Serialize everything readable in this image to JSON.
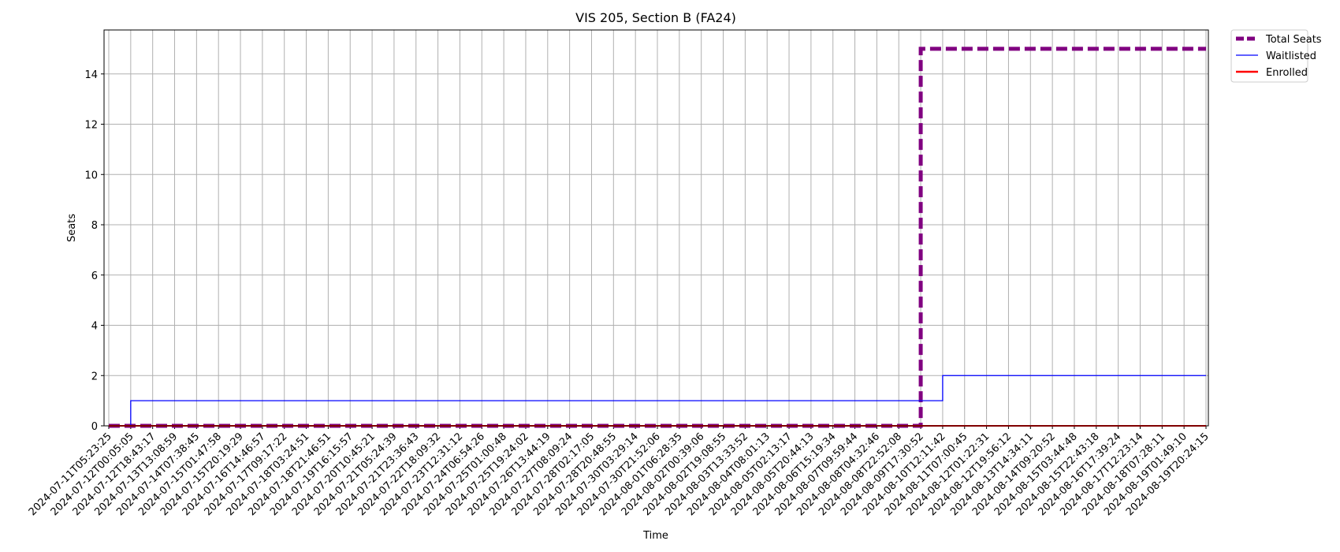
{
  "chart_data": {
    "type": "line",
    "title": "VIS 205, Section B (FA24)",
    "xlabel": "Time",
    "ylabel": "Seats",
    "ylim": [
      0,
      15.75
    ],
    "yticks": [
      0,
      2,
      4,
      6,
      8,
      10,
      12,
      14
    ],
    "grid": true,
    "legend_position": "outside-top-right",
    "x": [
      "2024-07-11T05:23:25",
      "2024-07-12T00:05:05",
      "2024-07-12T18:43:17",
      "2024-07-13T13:08:59",
      "2024-07-14T07:38:45",
      "2024-07-15T01:47:58",
      "2024-07-15T20:19:29",
      "2024-07-16T14:46:57",
      "2024-07-17T09:17:22",
      "2024-07-18T03:24:51",
      "2024-07-18T21:46:51",
      "2024-07-19T16:15:57",
      "2024-07-20T10:45:21",
      "2024-07-21T05:24:39",
      "2024-07-21T23:36:43",
      "2024-07-22T18:09:32",
      "2024-07-23T12:31:12",
      "2024-07-24T06:54:26",
      "2024-07-25T01:00:48",
      "2024-07-25T19:24:02",
      "2024-07-26T13:44:19",
      "2024-07-27T08:09:24",
      "2024-07-28T02:17:05",
      "2024-07-28T20:48:55",
      "2024-07-30T03:29:14",
      "2024-07-30T21:52:06",
      "2024-08-01T06:28:35",
      "2024-08-02T00:39:06",
      "2024-08-02T19:08:55",
      "2024-08-03T13:33:52",
      "2024-08-04T08:01:13",
      "2024-08-05T02:13:17",
      "2024-08-05T20:44:13",
      "2024-08-06T15:19:34",
      "2024-08-07T09:59:44",
      "2024-08-08T04:32:46",
      "2024-08-08T22:52:08",
      "2024-08-09T17:30:52",
      "2024-08-10T12:11:42",
      "2024-08-11T07:00:45",
      "2024-08-12T01:22:31",
      "2024-08-12T19:56:12",
      "2024-08-13T14:34:11",
      "2024-08-14T09:20:52",
      "2024-08-15T03:44:48",
      "2024-08-15T22:43:18",
      "2024-08-16T17:39:24",
      "2024-08-17T12:23:14",
      "2024-08-18T07:28:11",
      "2024-08-19T01:49:10",
      "2024-08-19T20:24:15"
    ],
    "series": [
      {
        "name": "Total Seats",
        "color": "#800080",
        "style": "dashed",
        "values": [
          0,
          0,
          0,
          0,
          0,
          0,
          0,
          0,
          0,
          0,
          0,
          0,
          0,
          0,
          0,
          0,
          0,
          0,
          0,
          0,
          0,
          0,
          0,
          0,
          0,
          0,
          0,
          0,
          0,
          0,
          0,
          0,
          0,
          0,
          0,
          0,
          0,
          15,
          15,
          15,
          15,
          15,
          15,
          15,
          15,
          15,
          15,
          15,
          15,
          15,
          15
        ]
      },
      {
        "name": "Waitlisted",
        "color": "#0000ff",
        "style": "solid-thin",
        "values": [
          0,
          1,
          1,
          1,
          1,
          1,
          1,
          1,
          1,
          1,
          1,
          1,
          1,
          1,
          1,
          1,
          1,
          1,
          1,
          1,
          1,
          1,
          1,
          1,
          1,
          1,
          1,
          1,
          1,
          1,
          1,
          1,
          1,
          1,
          1,
          1,
          1,
          1,
          2,
          2,
          2,
          2,
          2,
          2,
          2,
          2,
          2,
          2,
          2,
          2,
          2
        ]
      },
      {
        "name": "Enrolled",
        "color": "#ff0000",
        "style": "solid",
        "values": [
          0,
          0,
          0,
          0,
          0,
          0,
          0,
          0,
          0,
          0,
          0,
          0,
          0,
          0,
          0,
          0,
          0,
          0,
          0,
          0,
          0,
          0,
          0,
          0,
          0,
          0,
          0,
          0,
          0,
          0,
          0,
          0,
          0,
          0,
          0,
          0,
          0,
          0,
          0,
          0,
          0,
          0,
          0,
          0,
          0,
          0,
          0,
          0,
          0,
          0,
          0
        ]
      }
    ]
  }
}
